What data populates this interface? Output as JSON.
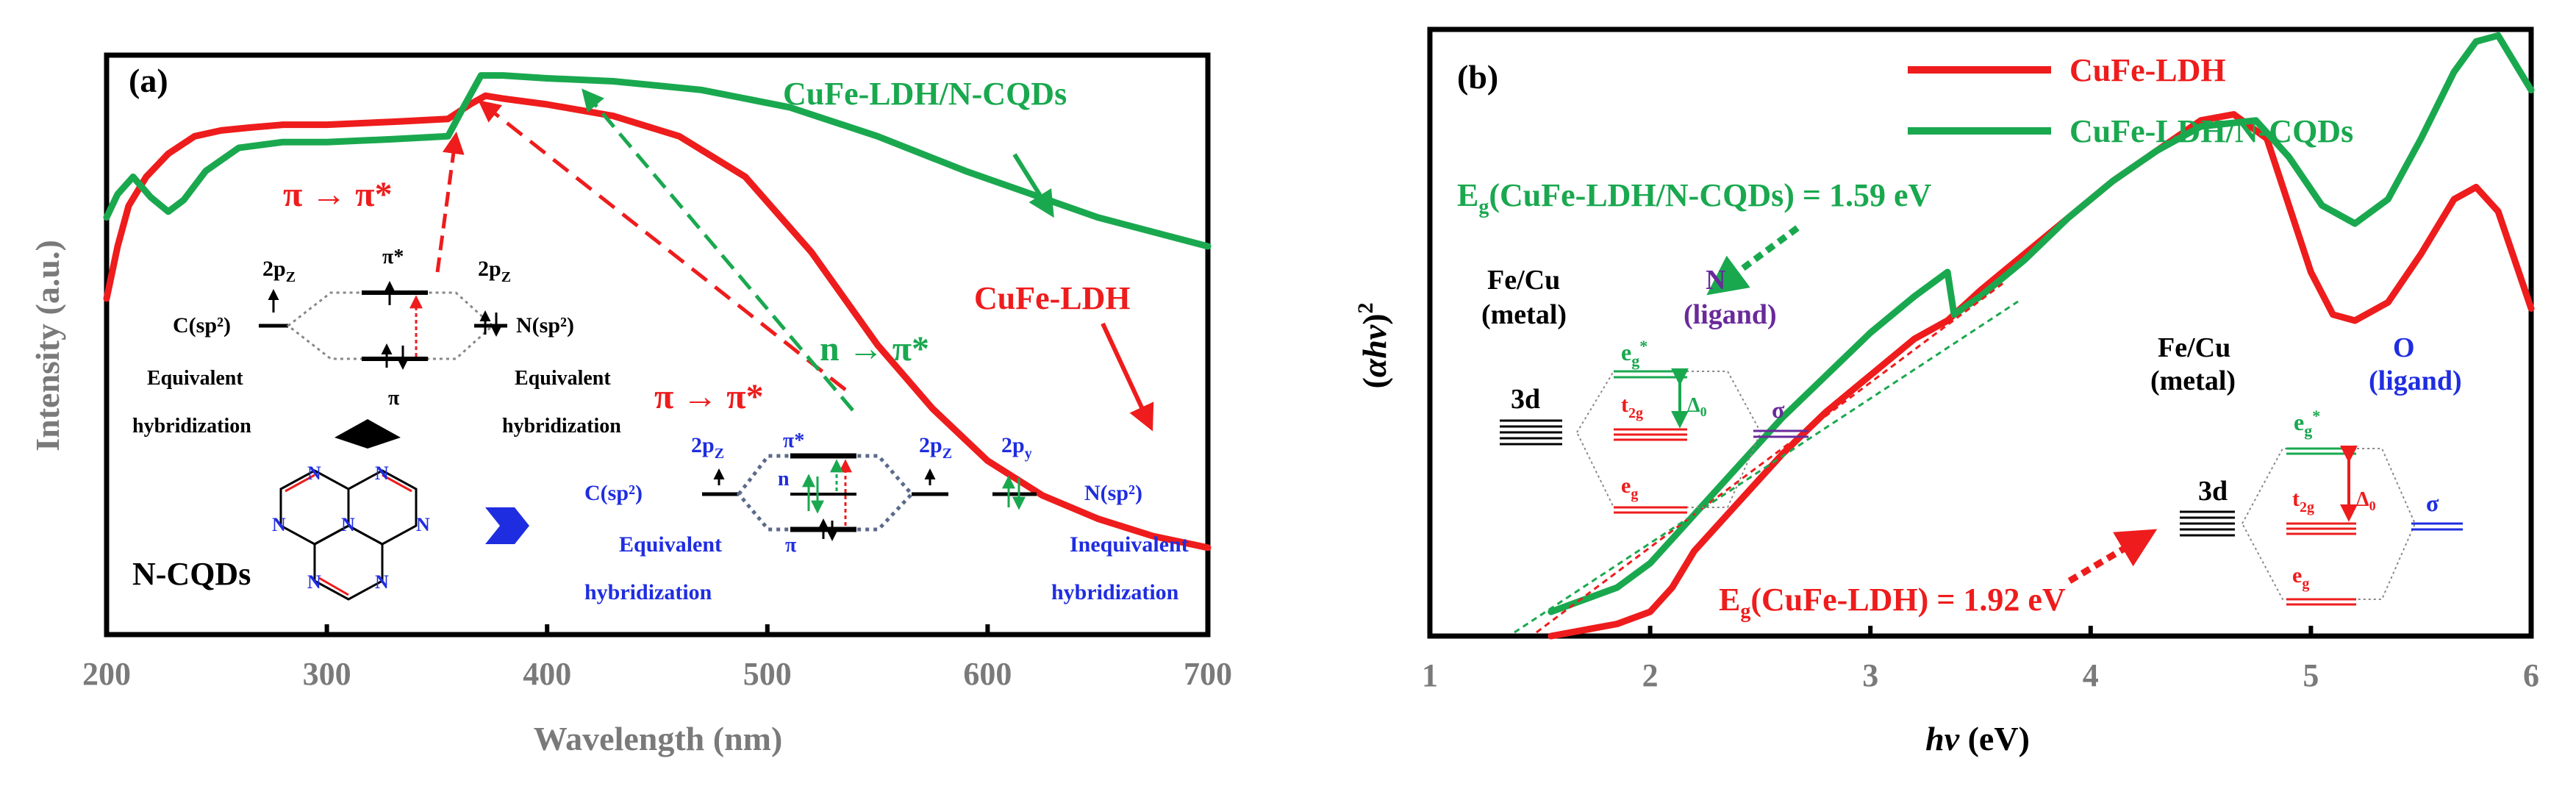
{
  "colors": {
    "red": "#ee1c1c",
    "green": "#1aa84f",
    "blue": "#1f2de0",
    "purple": "#6a2a9a",
    "grey": "#7a7a7a",
    "black": "#000000"
  },
  "chart_data": [
    {
      "type": "line",
      "panel_label": "(a)",
      "xlabel": "Wavelength (nm)",
      "ylabel": "Intensity (a.u.)",
      "xlim": [
        200,
        700
      ],
      "ylim": [
        0,
        1
      ],
      "xticks": [
        "200",
        "300",
        "400",
        "500",
        "600",
        "700"
      ],
      "yticks": [],
      "series": [
        {
          "name": "CuFe-LDH",
          "color": "#ee1c1c",
          "x": [
            200,
            205,
            210,
            218,
            228,
            240,
            252,
            265,
            280,
            300,
            330,
            355,
            365,
            372,
            380,
            400,
            430,
            460,
            490,
            520,
            550,
            575,
            600,
            625,
            650,
            675,
            700
          ],
          "y": [
            0.58,
            0.67,
            0.74,
            0.79,
            0.83,
            0.86,
            0.87,
            0.875,
            0.88,
            0.88,
            0.885,
            0.89,
            0.915,
            0.93,
            0.925,
            0.915,
            0.895,
            0.86,
            0.79,
            0.66,
            0.5,
            0.39,
            0.3,
            0.24,
            0.2,
            0.17,
            0.15
          ]
        },
        {
          "name": "CuFe-LDH/N-CQDs",
          "color": "#1aa84f",
          "x": [
            200,
            205,
            212,
            220,
            228,
            235,
            245,
            260,
            280,
            300,
            330,
            355,
            362,
            370,
            380,
            400,
            430,
            470,
            510,
            550,
            590,
            620,
            650,
            680,
            700
          ],
          "y": [
            0.72,
            0.76,
            0.79,
            0.755,
            0.73,
            0.75,
            0.8,
            0.84,
            0.85,
            0.85,
            0.855,
            0.86,
            0.91,
            0.965,
            0.965,
            0.96,
            0.955,
            0.94,
            0.91,
            0.86,
            0.8,
            0.76,
            0.72,
            0.69,
            0.67
          ]
        }
      ],
      "annotations": {
        "legend_green": "CuFe-LDH/N-CQDs",
        "legend_red": "CuFe-LDH",
        "pi_red_1": "π → π*",
        "pi_red_2": "π → π*",
        "n_green": "n → π*",
        "ncqds": "N-CQDs",
        "left_scheme": {
          "c_sp2": "C(sp²)",
          "n_sp2": "N(sp²)",
          "p2z_left": "2p",
          "p2z_right": "2p",
          "sub_z": "Z",
          "pi_star": "π*",
          "pi": "π",
          "equiv_left_1": "Equivalent",
          "equiv_left_2": "hybridization",
          "equiv_right_1": "Equivalent",
          "equiv_right_2": "hybridization"
        },
        "right_scheme": {
          "c_sp2": "C(sp²)",
          "n_sp2": "N(sp²)",
          "p2z_left": "2p",
          "p2z_right": "2p",
          "p2y": "2p",
          "sub_z": "Z",
          "sub_y": "y",
          "pi_star": "π*",
          "n_level": "n",
          "pi": "π",
          "equiv_1": "Equivalent",
          "equiv_2": "hybridization",
          "inequiv_1": "Inequivalent",
          "inequiv_2": "hybridization"
        }
      }
    },
    {
      "type": "line",
      "panel_label": "(b)",
      "xlabel": "hν (eV)",
      "ylabel": "(αhν)²",
      "xlim": [
        1,
        6
      ],
      "ylim": [
        0,
        1
      ],
      "xticks": [
        "1",
        "2",
        "3",
        "4",
        "5",
        "6"
      ],
      "yticks": [],
      "legend_position": "top",
      "series": [
        {
          "name": "CuFe-LDH",
          "color": "#ee1c1c",
          "x": [
            1.55,
            1.7,
            1.85,
            2.0,
            2.1,
            2.2,
            2.4,
            2.6,
            2.8,
            3.0,
            3.2,
            3.35,
            3.38,
            3.5,
            3.7,
            3.9,
            4.1,
            4.3,
            4.5,
            4.65,
            4.8,
            5.0,
            5.1,
            5.2,
            5.35,
            5.5,
            5.65,
            5.75,
            5.85,
            6.0
          ],
          "y": [
            0.0,
            0.01,
            0.02,
            0.04,
            0.08,
            0.14,
            0.22,
            0.3,
            0.37,
            0.43,
            0.49,
            0.52,
            0.53,
            0.57,
            0.63,
            0.69,
            0.75,
            0.8,
            0.85,
            0.86,
            0.82,
            0.6,
            0.53,
            0.52,
            0.55,
            0.63,
            0.72,
            0.74,
            0.7,
            0.54
          ]
        },
        {
          "name": "CuFe-LDH/N-CQDs",
          "color": "#1aa84f",
          "x": [
            1.55,
            1.7,
            1.85,
            2.0,
            2.2,
            2.4,
            2.6,
            2.8,
            3.0,
            3.2,
            3.35,
            3.38,
            3.5,
            3.7,
            3.9,
            4.1,
            4.3,
            4.5,
            4.75,
            4.9,
            5.05,
            5.2,
            5.35,
            5.5,
            5.65,
            5.75,
            5.85,
            5.95,
            6.0
          ],
          "y": [
            0.04,
            0.06,
            0.08,
            0.12,
            0.2,
            0.28,
            0.36,
            0.43,
            0.5,
            0.56,
            0.6,
            0.53,
            0.56,
            0.62,
            0.69,
            0.75,
            0.8,
            0.84,
            0.85,
            0.79,
            0.71,
            0.68,
            0.72,
            0.82,
            0.93,
            0.98,
            0.99,
            0.93,
            0.9
          ]
        }
      ],
      "annotations": {
        "eg_green": "E",
        "eg_green_rest": "(CuFe-LDH/N-CQDs) = 1.59 eV",
        "eg_red": "E",
        "eg_red_rest": "(CuFe-LDH) = 1.92 eV",
        "sub_g": "g",
        "metal1_1": "Fe/Cu",
        "metal1_2": "(metal)",
        "ligand1_1": "N",
        "ligand1_2": "(ligand)",
        "metal2_1": "Fe/Cu",
        "metal2_2": "(metal)",
        "ligand2_1": "O",
        "ligand2_2": "(ligand)",
        "d3": "3d",
        "eg_star": "e",
        "t2g": "t",
        "sub_2g": "2g",
        "eg_low": "e",
        "delta0": "Δ",
        "sub_0": "0",
        "sigma": "σ",
        "star": "*"
      }
    }
  ]
}
